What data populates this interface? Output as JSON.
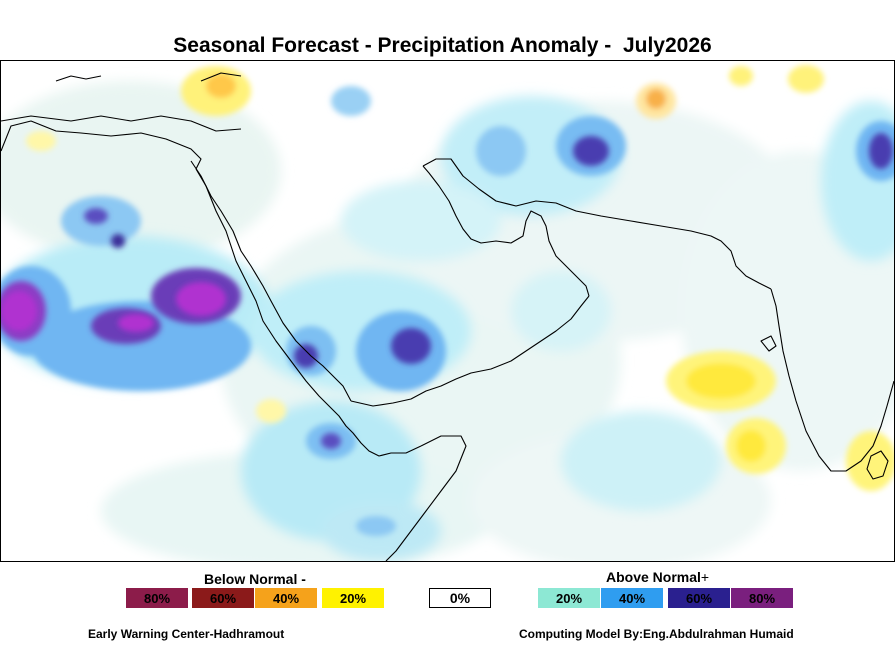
{
  "title": "Seasonal Forecast - Precipitation Anomaly -  July2026",
  "legend": {
    "below_title": "Below Normal -",
    "above_title": "Above Normal",
    "above_plus": "+",
    "below": [
      {
        "label": "80%",
        "color": "#8c1c4a"
      },
      {
        "label": "60%",
        "color": "#8b1a1a"
      },
      {
        "label": "40%",
        "color": "#f5a21b"
      },
      {
        "label": "20%",
        "color": "#fff200"
      }
    ],
    "neutral": {
      "label": "0%",
      "color": "#ffffff"
    },
    "above": [
      {
        "label": "20%",
        "color": "#8de8d4"
      },
      {
        "label": "40%",
        "color": "#2f9df0"
      },
      {
        "label": "60%",
        "color": "#2a208f"
      },
      {
        "label": "80%",
        "color": "#7a1f7e"
      }
    ]
  },
  "footer": {
    "left": "Early Warning Center-Hadhramout",
    "right": "Computing Model By:Eng.Abdulrahman Humaid"
  }
}
